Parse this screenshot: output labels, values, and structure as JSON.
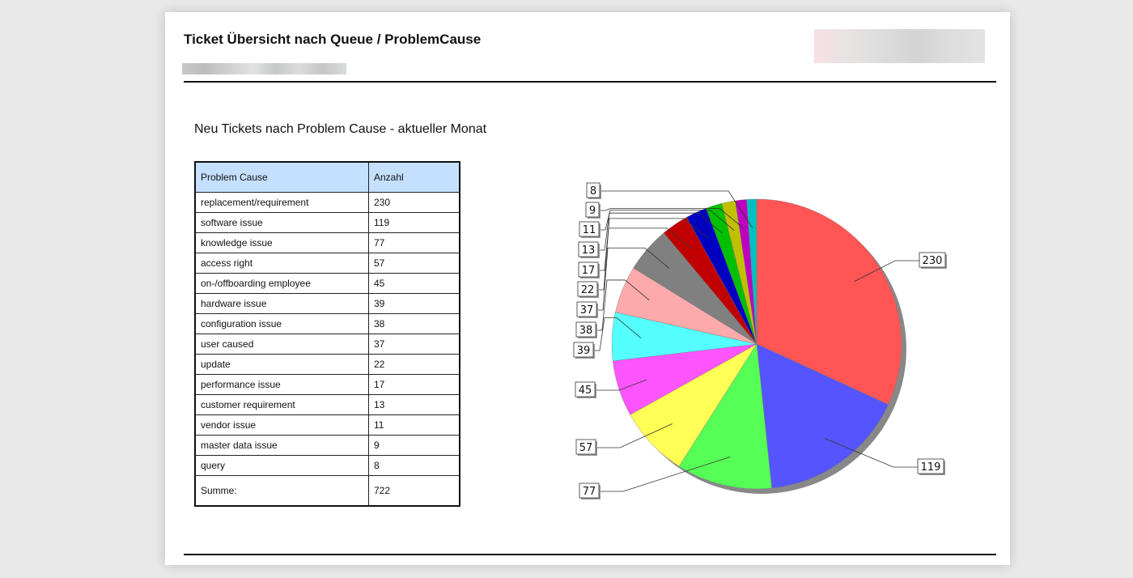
{
  "header": {
    "title": "Ticket Übersicht nach Queue / ProblemCause"
  },
  "report": {
    "subtitle": "Neu Tickets nach Problem Cause - aktueller Monat"
  },
  "table": {
    "headers": [
      "Problem Cause",
      "Anzahl"
    ],
    "rows": [
      [
        "replacement/requirement",
        "230"
      ],
      [
        "software issue",
        "119"
      ],
      [
        "knowledge issue",
        "77"
      ],
      [
        "access right",
        "57"
      ],
      [
        "on-/offboarding employee",
        "45"
      ],
      [
        "hardware issue",
        "39"
      ],
      [
        "configuration issue",
        "38"
      ],
      [
        "user caused",
        "37"
      ],
      [
        "update",
        "22"
      ],
      [
        "performance issue",
        "17"
      ],
      [
        "customer requirement",
        "13"
      ],
      [
        "vendor issue",
        "11"
      ],
      [
        "master data issue",
        "9"
      ],
      [
        "query",
        "8"
      ]
    ],
    "sum_label": "Summe:",
    "sum_value": "722"
  },
  "chart_data": {
    "type": "pie",
    "title": "Neu Tickets nach Problem Cause - aktueller Monat",
    "categories": [
      "replacement/requirement",
      "software issue",
      "knowledge issue",
      "access right",
      "on-/offboarding employee",
      "hardware issue",
      "configuration issue",
      "user caused",
      "update",
      "performance issue",
      "customer requirement",
      "vendor issue",
      "master data issue",
      "query"
    ],
    "values": [
      230,
      119,
      77,
      57,
      45,
      39,
      38,
      37,
      22,
      17,
      13,
      11,
      9,
      8
    ],
    "colors": [
      "#ff5555",
      "#5555ff",
      "#55ff55",
      "#ffff55",
      "#ff55ff",
      "#55ffff",
      "#ffaaaa",
      "#808080",
      "#c00000",
      "#0000c0",
      "#00c000",
      "#c0c000",
      "#c000c0",
      "#00c0c0"
    ],
    "data_labels": true
  }
}
